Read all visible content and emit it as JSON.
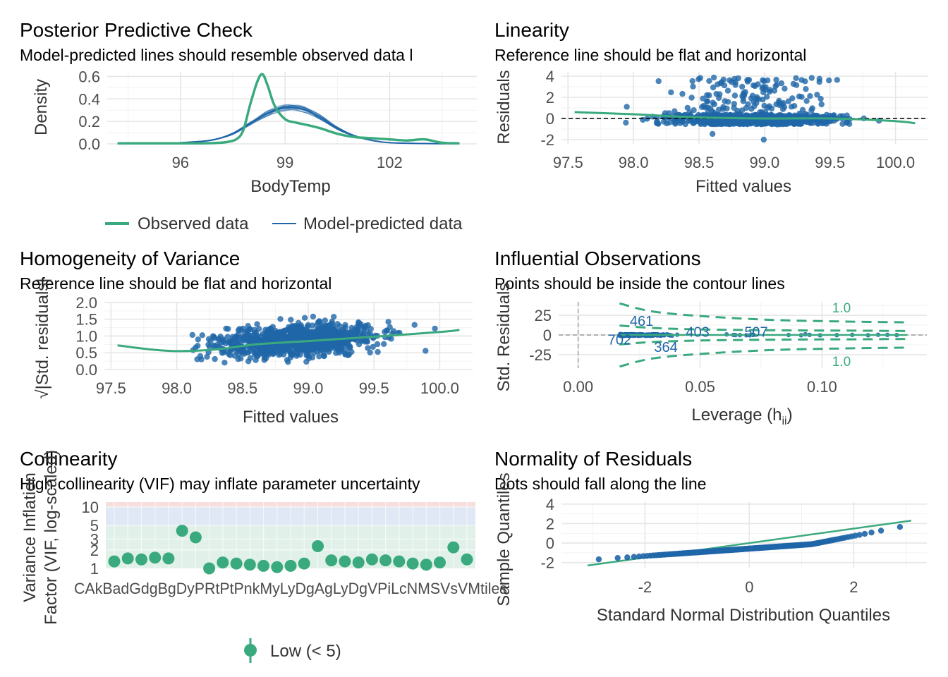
{
  "colors": {
    "observed": "#3aaa7e",
    "predicted": "#1f66a8",
    "points": "#1f66a8",
    "loess": "#3aaa7e"
  },
  "chart_data": [
    {
      "id": "ppc",
      "type": "line",
      "title": "Posterior Predictive Check",
      "subtitle": "Model-predicted lines should resemble observed data l",
      "xlabel": "BodyTemp",
      "ylabel": "Density",
      "xlim": [
        93.9,
        104.5
      ],
      "ylim": [
        0,
        0.64
      ],
      "xticks": [
        96,
        99,
        102
      ],
      "yticks": [
        0.0,
        0.2,
        0.4,
        0.6
      ],
      "ytick_labels": [
        "0.0",
        "0.2",
        "0.4",
        "0.6"
      ],
      "series": [
        {
          "name": "Observed data",
          "x": [
            94.2,
            95.5,
            96.5,
            97.0,
            97.3,
            97.6,
            97.8,
            98.0,
            98.2,
            98.35,
            98.5,
            98.7,
            99.0,
            99.3,
            99.6,
            100.0,
            100.5,
            101.0,
            101.5,
            102.0,
            102.5,
            103.0,
            103.5,
            104.0
          ],
          "y": [
            0.005,
            0.005,
            0.005,
            0.008,
            0.015,
            0.04,
            0.12,
            0.35,
            0.55,
            0.62,
            0.52,
            0.34,
            0.22,
            0.19,
            0.17,
            0.14,
            0.09,
            0.06,
            0.05,
            0.04,
            0.03,
            0.04,
            0.01,
            0.005
          ]
        },
        {
          "name": "Model-predicted data",
          "x": [
            94.2,
            95.5,
            96.5,
            97.0,
            97.5,
            98.0,
            98.5,
            99.0,
            99.5,
            100.0,
            100.5,
            101.0,
            101.5,
            102.0,
            103.0,
            104.0
          ],
          "y": [
            0.002,
            0.005,
            0.02,
            0.04,
            0.09,
            0.18,
            0.27,
            0.32,
            0.31,
            0.24,
            0.14,
            0.07,
            0.03,
            0.01,
            0.003,
            0.001
          ]
        }
      ],
      "legend": {
        "position": "bottom",
        "entries": [
          "Observed data",
          "Model-predicted data"
        ]
      }
    },
    {
      "id": "linearity",
      "type": "scatter",
      "title": "Linearity",
      "subtitle": "Reference line should be flat and horizontal",
      "xlabel": "Fitted values",
      "ylabel": "Residuals",
      "xlim": [
        97.45,
        100.25
      ],
      "ylim": [
        -2.4,
        4.4
      ],
      "xticks": [
        97.5,
        98.0,
        98.5,
        99.0,
        99.5,
        100.0
      ],
      "xtick_labels": [
        "97.5",
        "98.0",
        "98.5",
        "99.0",
        "99.5",
        "100.0"
      ],
      "yticks": [
        -2,
        0,
        2,
        4
      ],
      "reference_line_y": 0,
      "loess": {
        "x": [
          97.55,
          98.0,
          98.5,
          99.0,
          99.5,
          100.0,
          100.15
        ],
        "y": [
          0.6,
          0.4,
          0.1,
          0.0,
          0.0,
          -0.25,
          -0.45
        ]
      }
    },
    {
      "id": "homogeneity",
      "type": "scatter",
      "title": "Homogeneity of Variance",
      "subtitle": "Reference line should be flat and horizontal",
      "xlabel": "Fitted values",
      "ylabel": "√|Std. residuals|",
      "xlim": [
        97.45,
        100.25
      ],
      "ylim": [
        0,
        2.02
      ],
      "xticks": [
        97.5,
        98.0,
        98.5,
        99.0,
        99.5,
        100.0
      ],
      "xtick_labels": [
        "97.5",
        "98.0",
        "98.5",
        "99.0",
        "99.5",
        "100.0"
      ],
      "yticks": [
        0.0,
        0.5,
        1.0,
        1.5,
        2.0
      ],
      "ytick_labels": [
        "0.0",
        "0.5",
        "1.0",
        "1.5",
        "2.0"
      ],
      "loess": {
        "x": [
          97.55,
          97.8,
          98.0,
          98.3,
          98.6,
          99.0,
          99.5,
          100.0,
          100.15
        ],
        "y": [
          0.72,
          0.6,
          0.55,
          0.6,
          0.75,
          0.85,
          0.98,
          1.12,
          1.18
        ]
      }
    },
    {
      "id": "influential",
      "type": "scatter",
      "title": "Influential Observations",
      "subtitle": "Points should be inside the contour lines",
      "xlabel": "Leverage (h",
      "xlabel_sub": "ii",
      "xlabel_end": ")",
      "ylabel": "Std. Residuals",
      "xlim": [
        -0.008,
        0.143
      ],
      "ylim": [
        -42,
        42
      ],
      "xticks": [
        0.0,
        0.05,
        0.1
      ],
      "xtick_labels": [
        "0.00",
        "0.05",
        "0.10"
      ],
      "yticks": [
        -25,
        0,
        25
      ],
      "contour_label": "1.0",
      "point_labels": [
        {
          "label": "461",
          "x": 0.026,
          "y": 18
        },
        {
          "label": "702",
          "x": 0.017,
          "y": -6
        },
        {
          "label": "364",
          "x": 0.036,
          "y": -15
        },
        {
          "label": "403",
          "x": 0.049,
          "y": 4
        },
        {
          "label": "507",
          "x": 0.073,
          "y": 4
        }
      ]
    },
    {
      "id": "collinearity",
      "type": "scatter",
      "title": "Collinearity",
      "subtitle": "High collinearity (VIF) may inflate parameter uncertainty",
      "ylabel_line1": "Variance Inflation",
      "ylabel_line2": "Factor (VIF, log-scaled)",
      "yscale": "log",
      "ylim": [
        1,
        12
      ],
      "yticks": [
        1,
        3,
        5,
        10
      ],
      "ytick_labels": [
        "1",
        "3",
        "5",
        "10"
      ],
      "ytick_extra": "2",
      "values": [
        1.3,
        1.45,
        1.4,
        1.5,
        1.45,
        4.1,
        3.2,
        1.0,
        1.25,
        1.2,
        1.15,
        1.1,
        1.05,
        1.1,
        1.2,
        2.3,
        1.35,
        1.3,
        1.25,
        1.4,
        1.35,
        1.3,
        1.2,
        1.15,
        1.25,
        2.2,
        1.4
      ],
      "category_labels_overlapping": "CAkBadGdgBgDyPRtPtPnkMyLyDgAgLyDgVPiLcNMSVsVMtiles",
      "legend": {
        "position": "bottom",
        "entries": [
          "Low (< 5)"
        ]
      }
    },
    {
      "id": "normality",
      "type": "scatter",
      "title": "Normality of Residuals",
      "subtitle": "Dots should fall along the line",
      "xlabel": "Standard Normal Distribution Quantiles",
      "ylabel": "Sample Quantiles",
      "xlim": [
        -3.6,
        3.4
      ],
      "ylim": [
        -2.6,
        4.2
      ],
      "xticks": [
        -2,
        0,
        2
      ],
      "yticks": [
        -2,
        0,
        2,
        4
      ],
      "reference_line": {
        "x": [
          -3.1,
          3.1
        ],
        "y": [
          -2.3,
          2.3
        ]
      }
    }
  ]
}
